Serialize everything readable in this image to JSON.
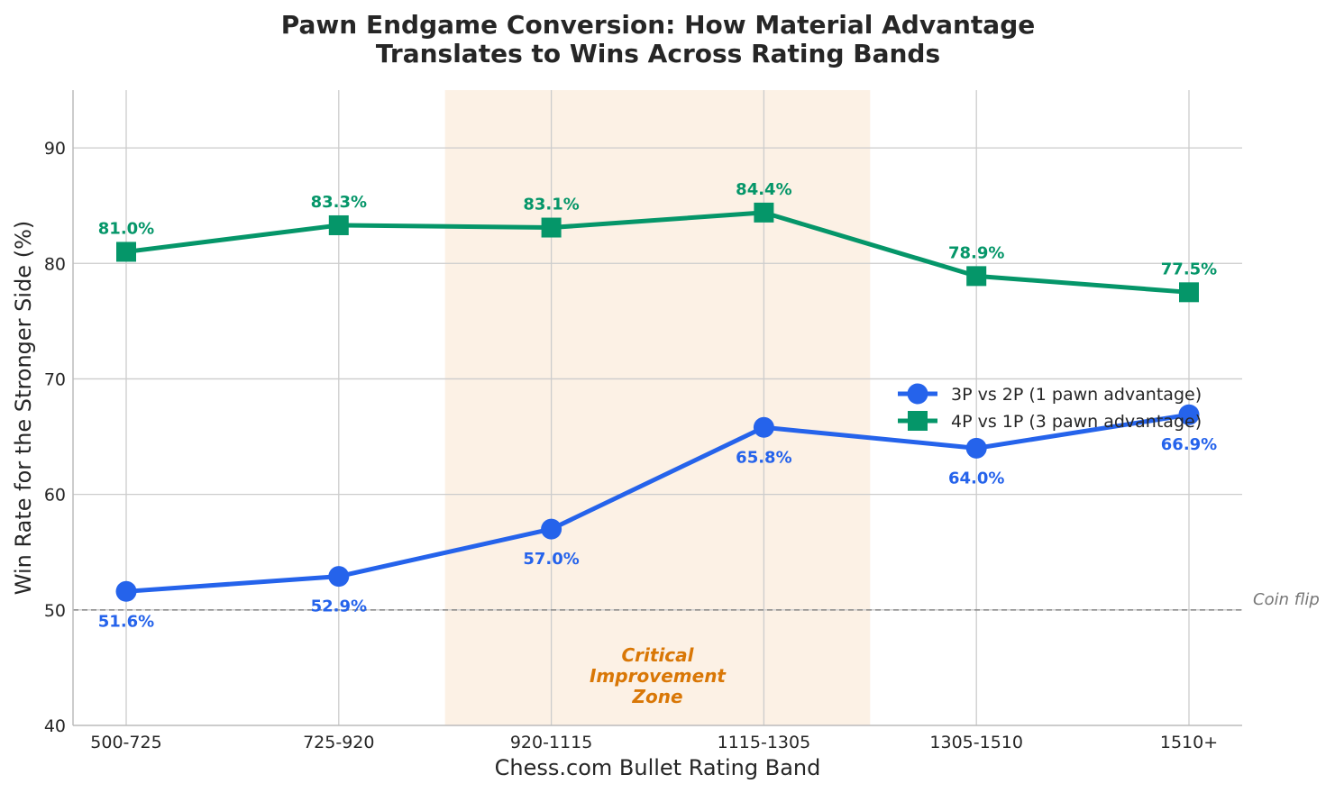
{
  "chart_data": {
    "type": "line",
    "title_lines": [
      "Pawn Endgame Conversion: How Material Advantage",
      "Translates to Wins Across Rating Bands"
    ],
    "xlabel": "Chess.com Bullet Rating Band",
    "ylabel": "Win Rate for the Stronger Side (%)",
    "categories": [
      "500-725",
      "725-920",
      "920-1115",
      "1115-1305",
      "1305-1510",
      "1510+"
    ],
    "ylim": [
      40,
      95
    ],
    "yticks": [
      40,
      50,
      60,
      70,
      80,
      90
    ],
    "grid": true,
    "legend_position": "right",
    "series": [
      {
        "name": "3P vs 2P (1 pawn advantage)",
        "values": [
          51.6,
          52.9,
          57.0,
          65.8,
          64.0,
          66.9
        ],
        "labels": [
          "51.6%",
          "52.9%",
          "57.0%",
          "65.8%",
          "64.0%",
          "66.9%"
        ],
        "color": "#2563eb",
        "marker": "circle",
        "label_position": "below"
      },
      {
        "name": "4P vs 1P (3 pawn advantage)",
        "values": [
          81.0,
          83.3,
          83.1,
          84.4,
          78.9,
          77.5
        ],
        "labels": [
          "81.0%",
          "83.3%",
          "83.1%",
          "84.4%",
          "78.9%",
          "77.5%"
        ],
        "color": "#059669",
        "marker": "square",
        "label_position": "above"
      }
    ],
    "reference_line": {
      "y": 50,
      "label": "Coin flip",
      "color": "#888888"
    },
    "highlight_zone": {
      "x_start": 1.5,
      "x_end": 3.5,
      "label_lines": [
        "Critical",
        "Improvement",
        "Zone"
      ],
      "fill": "#fbeee0",
      "text_color": "#d97706"
    }
  }
}
